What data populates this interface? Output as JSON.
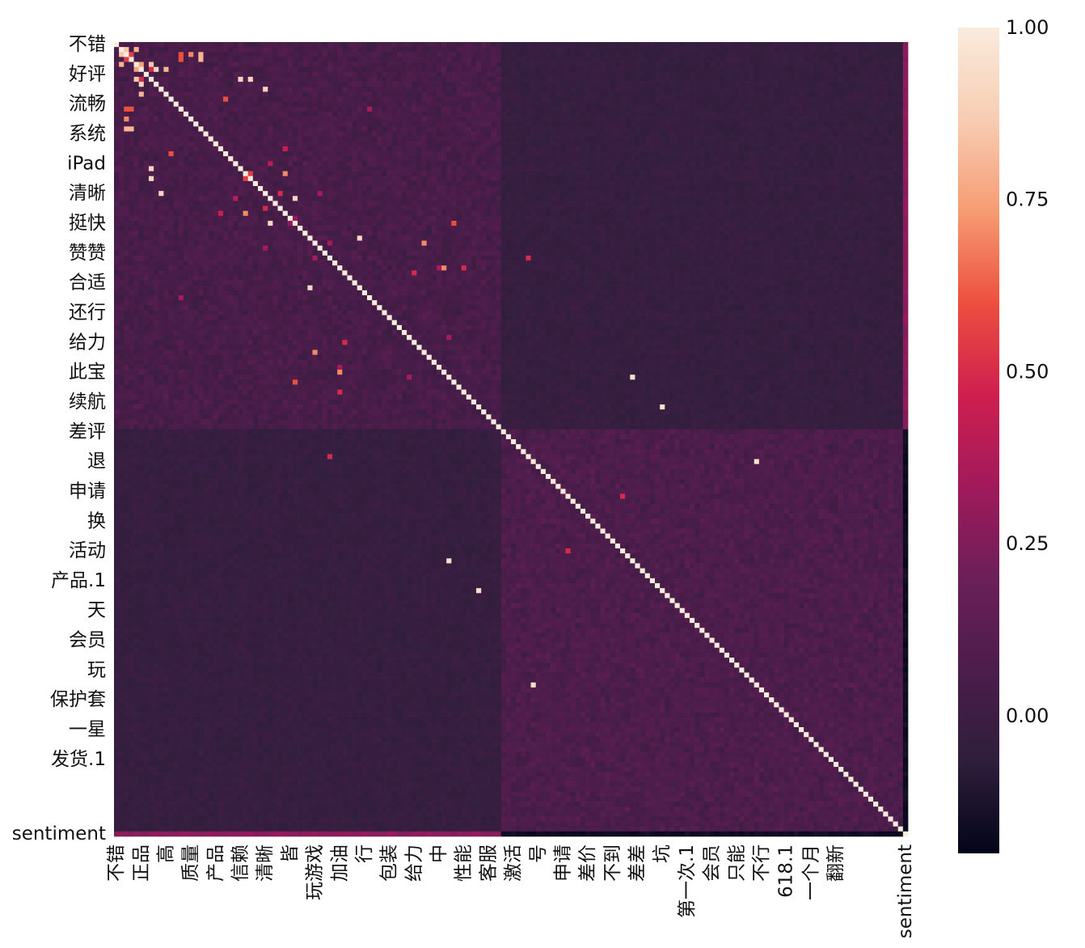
{
  "chart_data": {
    "type": "heatmap",
    "title": "",
    "matrix_size": 160,
    "y_tick_labels": [
      "不错",
      "好评",
      "流畅",
      "系统",
      "iPad",
      "清晰",
      "挺快",
      "赞赞",
      "合适",
      "还行",
      "给力",
      "此宝",
      "续航",
      "差评",
      "退",
      "申请",
      "换",
      "活动",
      "产品.1",
      "天",
      "会员",
      "玩",
      "保护套",
      "一星",
      "发货.1",
      "sentiment"
    ],
    "x_tick_labels": [
      "不错",
      "正品",
      "高",
      "质量",
      "产品",
      "信赖",
      "清晰",
      "皆",
      "玩游戏",
      "加油",
      "行",
      "包装",
      "给力",
      "中",
      "性能",
      "客服",
      "激活",
      "号",
      "申请",
      "差价",
      "不到",
      "差差",
      "坑",
      "第一次.1",
      "会员",
      "只能",
      "不行",
      "618.1",
      "一个月",
      "翻新",
      "sentiment"
    ],
    "diagonal_value": 1.0,
    "colorbar": {
      "ticks": [
        1.0,
        0.75,
        0.5,
        0.25,
        0.0
      ],
      "tick_labels": [
        "1.00",
        "0.75",
        "0.50",
        "0.25",
        "0.00"
      ],
      "min": -0.2,
      "max": 1.0,
      "colormap": "rocket",
      "colors": [
        "#03051a",
        "#2e1e3b",
        "#4c1d4b",
        "#6b1f59",
        "#a11a5b",
        "#cf1f4f",
        "#ed4f3f",
        "#f69c73",
        "#f7cdb3",
        "#faebdd"
      ]
    },
    "block_structure": {
      "positive_block_end_row": 78,
      "negative_block_start_row": 78,
      "within_block_mean": 0.05,
      "cross_block_mean": -0.03,
      "sentiment_positive_corr": 0.28,
      "sentiment_negative_corr": -0.16
    },
    "highlighted_cells": [
      [
        2,
        1,
        0.85
      ],
      [
        4,
        1,
        0.8
      ],
      [
        2,
        3,
        0.55
      ],
      [
        5,
        4,
        0.75
      ],
      [
        7,
        4,
        0.85
      ],
      [
        7,
        5,
        0.5
      ],
      [
        8,
        5,
        0.9
      ],
      [
        10,
        5,
        0.8
      ],
      [
        13,
        2,
        0.6
      ],
      [
        13,
        3,
        0.6
      ],
      [
        15,
        2,
        0.7
      ],
      [
        17,
        2,
        0.8
      ],
      [
        17,
        3,
        0.8
      ],
      [
        22,
        11,
        0.6
      ],
      [
        25,
        7,
        0.9
      ],
      [
        27,
        7,
        0.9
      ],
      [
        30,
        9,
        0.9
      ],
      [
        31,
        24,
        0.4
      ],
      [
        27,
        26,
        0.55
      ],
      [
        34,
        21,
        0.45
      ],
      [
        34,
        26,
        0.7
      ],
      [
        33,
        30,
        0.5
      ],
      [
        36,
        31,
        0.9
      ],
      [
        36,
        35,
        0.3
      ],
      [
        30,
        41,
        0.35
      ],
      [
        39,
        49,
        0.9
      ],
      [
        36,
        68,
        0.6
      ],
      [
        43,
        83,
        0.5
      ],
      [
        40,
        43,
        0.35
      ],
      [
        45,
        65,
        0.35
      ],
      [
        45,
        66,
        0.7
      ],
      [
        45,
        70,
        0.5
      ],
      [
        46,
        60,
        0.5
      ],
      [
        51,
        13,
        0.35
      ],
      [
        62,
        40,
        0.7
      ],
      [
        67,
        59,
        0.35
      ],
      [
        67,
        104,
        0.95
      ],
      [
        73,
        110,
        0.95
      ],
      [
        84,
        129,
        0.95
      ],
      [
        91,
        102,
        0.5
      ]
    ]
  }
}
